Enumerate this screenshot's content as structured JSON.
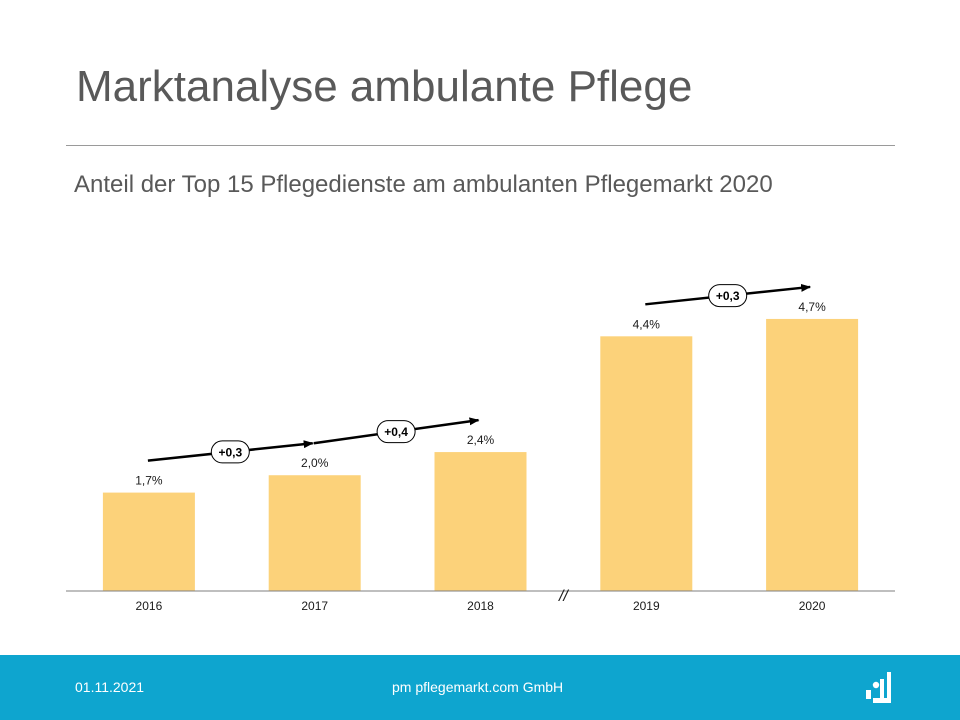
{
  "slide": {
    "title": "Marktanalyse ambulante Pflege",
    "subtitle": "Anteil der Top 15 Pflegedienste am ambulanten Pflegemarkt 2020"
  },
  "footer": {
    "date": "01.11.2021",
    "company": "pm pflegemarkt.com GmbH"
  },
  "colors": {
    "bar": "#fcd27a",
    "footer": "#0ea5cf",
    "title": "#595959"
  },
  "chart_data": {
    "type": "bar",
    "categories": [
      "2016",
      "2017",
      "2018",
      "2019",
      "2020"
    ],
    "values": [
      1.7,
      2.0,
      2.4,
      4.4,
      4.7
    ],
    "data_labels": [
      "1,7%",
      "2,0%",
      "2,4%",
      "4,4%",
      "4,7%"
    ],
    "ylim": [
      0,
      5.2
    ],
    "axis_break": {
      "between": [
        "2018",
        "2019"
      ],
      "label": "//"
    },
    "annotations": [
      {
        "label": "+0,3",
        "from": "2016",
        "to": "2017"
      },
      {
        "label": "+0,4",
        "from": "2017",
        "to": "2018"
      },
      {
        "label": "+0,3",
        "from": "2019",
        "to": "2020"
      }
    ],
    "grid": false,
    "legend": "none"
  }
}
